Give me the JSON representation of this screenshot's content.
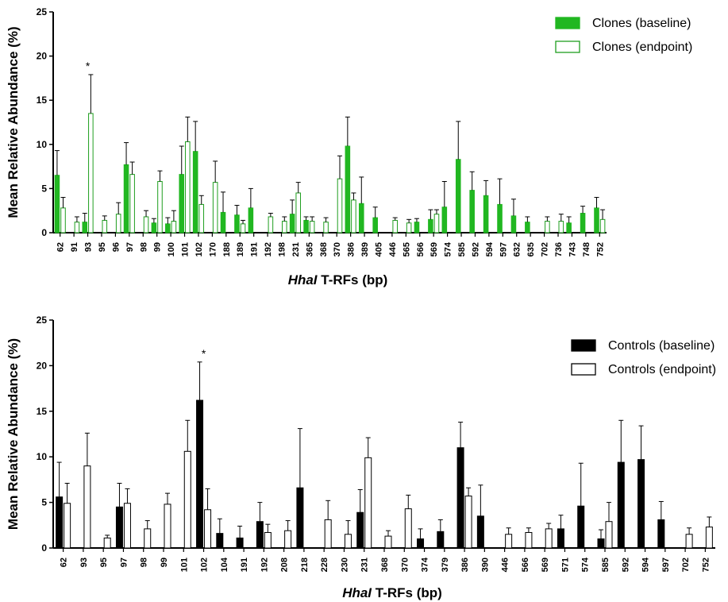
{
  "colors": {
    "clones_baseline": "#21b721",
    "clones_endpoint_fill": "#ffffff",
    "clones_endpoint_stroke": "#1f9e1f",
    "controls_baseline": "#000000",
    "controls_endpoint_fill": "#ffffff",
    "controls_endpoint_stroke": "#000000"
  },
  "chart_data": [
    {
      "type": "bar",
      "ylabel": "Mean Relative Abundance (%)",
      "xlabel_italic": "HhaI",
      "xlabel_rest": " T-RFs (bp)",
      "ylim": [
        0,
        25
      ],
      "yticks": [
        0,
        5,
        10,
        15,
        20,
        25
      ],
      "legend_position": "top-right",
      "categories": [
        "62",
        "91",
        "93",
        "95",
        "96",
        "97",
        "98",
        "99",
        "100",
        "101",
        "102",
        "170",
        "188",
        "189",
        "191",
        "192",
        "198",
        "231",
        "365",
        "368",
        "370",
        "386",
        "389",
        "405",
        "446",
        "565",
        "566",
        "569",
        "574",
        "585",
        "592",
        "594",
        "597",
        "632",
        "635",
        "702",
        "736",
        "743",
        "748",
        "752"
      ],
      "series": [
        {
          "name": "Clones (baseline)",
          "values": [
            6.5,
            null,
            1.2,
            null,
            null,
            7.7,
            null,
            1.1,
            1.0,
            6.6,
            9.2,
            null,
            2.3,
            2.0,
            2.8,
            null,
            null,
            2.1,
            1.4,
            null,
            null,
            9.8,
            3.3,
            1.7,
            null,
            null,
            1.2,
            1.5,
            2.9,
            8.3,
            4.8,
            4.2,
            3.2,
            1.9,
            1.2,
            null,
            null,
            1.1,
            2.2,
            2.8
          ],
          "errors": [
            2.8,
            null,
            1.0,
            null,
            null,
            2.5,
            null,
            0.5,
            0.7,
            3.2,
            3.4,
            null,
            2.3,
            1.1,
            2.2,
            null,
            null,
            1.6,
            0.4,
            null,
            null,
            3.3,
            3.0,
            1.2,
            null,
            null,
            0.4,
            1.1,
            2.9,
            4.3,
            2.1,
            1.7,
            2.9,
            1.9,
            0.6,
            null,
            null,
            0.7,
            0.8,
            1.2
          ]
        },
        {
          "name": "Clones (endpoint)",
          "values": [
            2.8,
            1.2,
            13.5,
            1.4,
            2.1,
            6.6,
            1.8,
            5.8,
            1.3,
            10.3,
            3.2,
            5.7,
            null,
            1.0,
            null,
            1.8,
            1.3,
            4.5,
            1.3,
            1.2,
            6.1,
            3.7,
            null,
            null,
            1.4,
            1.1,
            null,
            2.1,
            null,
            null,
            null,
            null,
            null,
            null,
            null,
            1.3,
            1.3,
            null,
            null,
            1.5
          ],
          "errors": [
            1.2,
            0.6,
            4.4,
            0.5,
            1.3,
            1.4,
            0.7,
            1.2,
            1.2,
            2.8,
            1.0,
            2.4,
            null,
            0.4,
            null,
            0.4,
            0.5,
            1.2,
            0.5,
            0.5,
            2.6,
            0.8,
            null,
            null,
            0.3,
            0.4,
            null,
            0.5,
            null,
            null,
            null,
            null,
            null,
            null,
            null,
            0.5,
            0.8,
            null,
            null,
            1.1
          ]
        }
      ],
      "annotations": [
        {
          "category": "93",
          "text": "*"
        }
      ]
    },
    {
      "type": "bar",
      "ylabel": "Mean Relative Abundance (%)",
      "xlabel_italic": "HhaI",
      "xlabel_rest": " T-RFs (bp)",
      "ylim": [
        0,
        25
      ],
      "yticks": [
        0,
        5,
        10,
        15,
        20,
        25
      ],
      "legend_position": "top-right",
      "categories": [
        "62",
        "93",
        "95",
        "97",
        "98",
        "99",
        "101",
        "102",
        "104",
        "191",
        "192",
        "208",
        "218",
        "228",
        "230",
        "231",
        "368",
        "370",
        "374",
        "379",
        "386",
        "390",
        "446",
        "566",
        "569",
        "571",
        "574",
        "585",
        "592",
        "594",
        "597",
        "702",
        "752"
      ],
      "series": [
        {
          "name": "Controls (baseline)",
          "values": [
            5.6,
            null,
            null,
            4.5,
            null,
            null,
            null,
            16.2,
            1.6,
            1.1,
            2.9,
            null,
            6.6,
            null,
            null,
            3.9,
            null,
            null,
            1.0,
            1.8,
            11.0,
            3.5,
            null,
            null,
            null,
            2.1,
            4.6,
            1.0,
            9.4,
            9.7,
            3.1,
            null,
            null
          ],
          "errors": [
            3.8,
            null,
            null,
            2.6,
            null,
            null,
            null,
            4.2,
            1.6,
            1.3,
            2.1,
            null,
            6.5,
            null,
            null,
            2.5,
            null,
            null,
            1.1,
            1.3,
            2.8,
            3.4,
            null,
            null,
            null,
            1.5,
            4.7,
            1.0,
            4.6,
            3.7,
            2.0,
            null,
            null
          ]
        },
        {
          "name": "Controls (endpoint)",
          "values": [
            4.9,
            9.0,
            1.1,
            4.9,
            2.1,
            4.8,
            10.6,
            4.2,
            null,
            null,
            1.7,
            1.9,
            null,
            3.1,
            1.5,
            9.9,
            1.3,
            4.3,
            null,
            null,
            5.7,
            null,
            1.5,
            1.7,
            2.1,
            null,
            null,
            2.9,
            null,
            null,
            null,
            1.5,
            2.3
          ],
          "errors": [
            2.2,
            3.6,
            0.3,
            1.6,
            0.9,
            1.2,
            3.4,
            2.3,
            null,
            null,
            0.9,
            1.1,
            null,
            2.1,
            1.5,
            2.2,
            0.6,
            1.5,
            null,
            null,
            0.9,
            null,
            0.7,
            0.5,
            0.6,
            null,
            null,
            2.1,
            null,
            null,
            null,
            0.7,
            1.1
          ]
        }
      ],
      "annotations": [
        {
          "category": "102",
          "text": "*"
        }
      ]
    }
  ]
}
